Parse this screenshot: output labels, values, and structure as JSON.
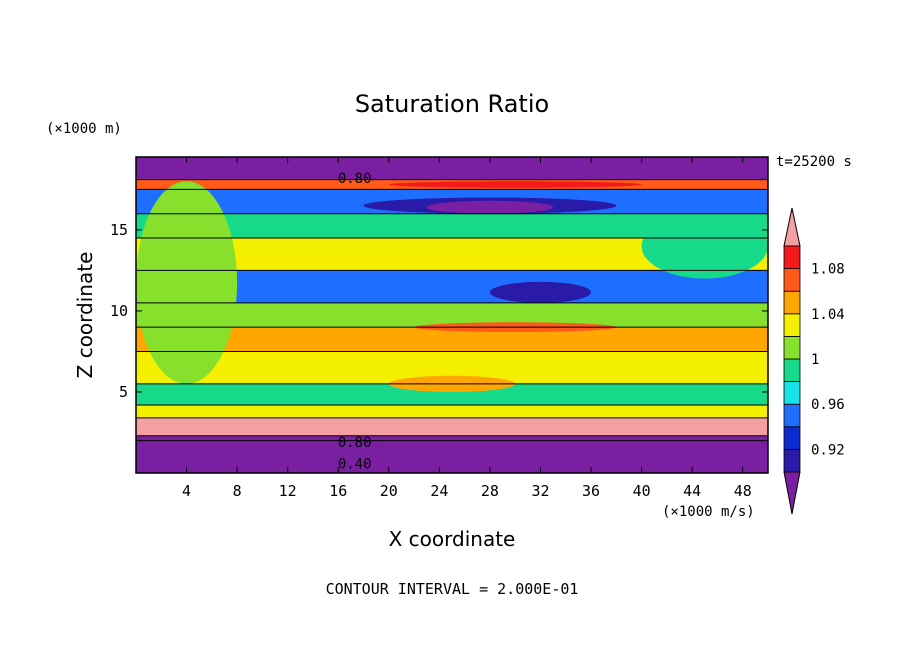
{
  "chart_data": {
    "type": "heatmap",
    "title": "Saturation Ratio",
    "xlabel": "X coordinate",
    "ylabel": "Z coordinate",
    "x_unit": "(×1000 m/s)",
    "y_unit": "(×1000 m)",
    "time_label": "t=25200 s",
    "footer": "CONTOUR INTERVAL = 2.000E-01",
    "xlim": [
      0,
      50
    ],
    "ylim": [
      0,
      19.5
    ],
    "x_ticks": [
      4,
      8,
      12,
      16,
      20,
      24,
      28,
      32,
      36,
      40,
      44,
      48
    ],
    "y_ticks": [
      5,
      10,
      15
    ],
    "contour_labels": [
      {
        "text": "0.80",
        "x": 17.3,
        "z": 18.2
      },
      {
        "text": "0.80",
        "x": 17.3,
        "z": 1.9
      },
      {
        "text": "0.40",
        "x": 17.3,
        "z": 0.6
      }
    ],
    "colorbar": {
      "levels": [
        0.9,
        0.92,
        0.94,
        0.96,
        0.98,
        1.0,
        1.02,
        1.04,
        1.06,
        1.08,
        1.1
      ],
      "tick_labels": [
        "0.92",
        "0.96",
        "1",
        "1.04",
        "1.08"
      ],
      "extend": "both",
      "colors": [
        "#7b1fa2",
        "#2a1aa8",
        "#0b2bd1",
        "#1e6fff",
        "#18e3e8",
        "#16d98a",
        "#86e02c",
        "#f5f000",
        "#ffa600",
        "#ff5a1a",
        "#f21a1a",
        "#f4a0a0"
      ]
    },
    "bands": [
      {
        "z": [
          0.0,
          2.0
        ],
        "value": 0.4
      },
      {
        "z": [
          2.0,
          2.3
        ],
        "value": 0.85
      },
      {
        "z": [
          2.3,
          3.4
        ],
        "value": 1.12
      },
      {
        "z": [
          3.4,
          4.2
        ],
        "value": 1.02
      },
      {
        "z": [
          4.2,
          5.5
        ],
        "value": 0.99
      },
      {
        "z": [
          5.5,
          7.5
        ],
        "value": 1.02
      },
      {
        "z": [
          7.5,
          9.0
        ],
        "value": 1.04
      },
      {
        "z": [
          9.0,
          10.5
        ],
        "value": 1.0
      },
      {
        "z": [
          10.5,
          12.5
        ],
        "value": 0.95
      },
      {
        "z": [
          12.5,
          14.5
        ],
        "value": 1.02
      },
      {
        "z": [
          14.5,
          16.0
        ],
        "value": 0.98
      },
      {
        "z": [
          16.0,
          17.5
        ],
        "value": 0.94
      },
      {
        "z": [
          17.5,
          18.1
        ],
        "value": 1.06
      },
      {
        "z": [
          18.1,
          19.5
        ],
        "value": 0.4
      }
    ],
    "features": [
      {
        "x": [
          18,
          38
        ],
        "z": [
          16.0,
          17.0
        ],
        "value": 0.91
      },
      {
        "x": [
          23,
          33
        ],
        "z": [
          16.0,
          16.8
        ],
        "value": 0.89
      },
      {
        "x": [
          20,
          40
        ],
        "z": [
          17.6,
          18.0
        ],
        "value": 1.09
      },
      {
        "x": [
          28,
          36
        ],
        "z": [
          10.5,
          11.8
        ],
        "value": 0.9
      },
      {
        "x": [
          18,
          28
        ],
        "z": [
          10.8,
          12.2
        ],
        "value": 0.94
      },
      {
        "x": [
          22,
          38
        ],
        "z": [
          8.7,
          9.3
        ],
        "value": 1.07
      },
      {
        "x": [
          0,
          8
        ],
        "z": [
          5.5,
          18.0
        ],
        "value": 1.0
      },
      {
        "x": [
          20,
          30
        ],
        "z": [
          5.0,
          6.0
        ],
        "value": 1.04
      },
      {
        "x": [
          40,
          50
        ],
        "z": [
          12.0,
          16.0
        ],
        "value": 0.98
      }
    ]
  }
}
